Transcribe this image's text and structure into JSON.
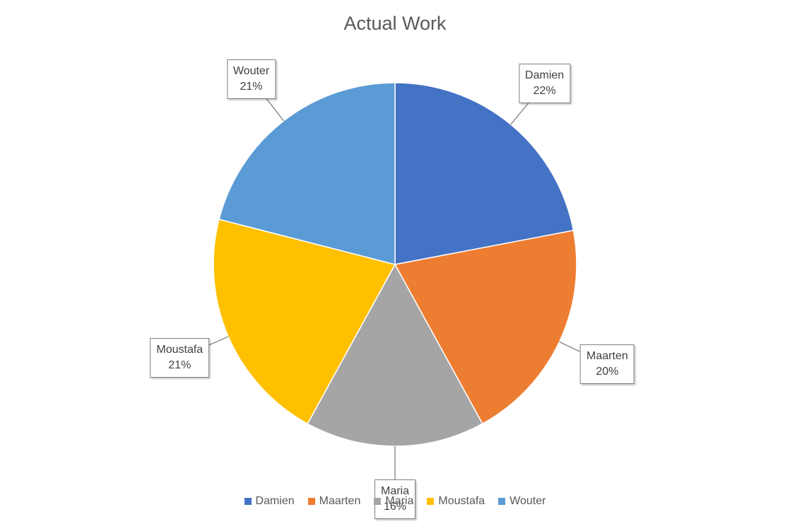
{
  "chart_data": {
    "type": "pie",
    "title": "Actual Work",
    "categories": [
      "Damien",
      "Maarten",
      "Maria",
      "Moustafa",
      "Wouter"
    ],
    "values": [
      22,
      20,
      16,
      21,
      21
    ],
    "value_labels": [
      "22%",
      "20%",
      "16%",
      "21%",
      "21%"
    ],
    "colors": [
      "#4472C4",
      "#ED7D31",
      "#A5A5A5",
      "#FFC000",
      "#5B9BD5"
    ],
    "legend_position": "bottom"
  }
}
